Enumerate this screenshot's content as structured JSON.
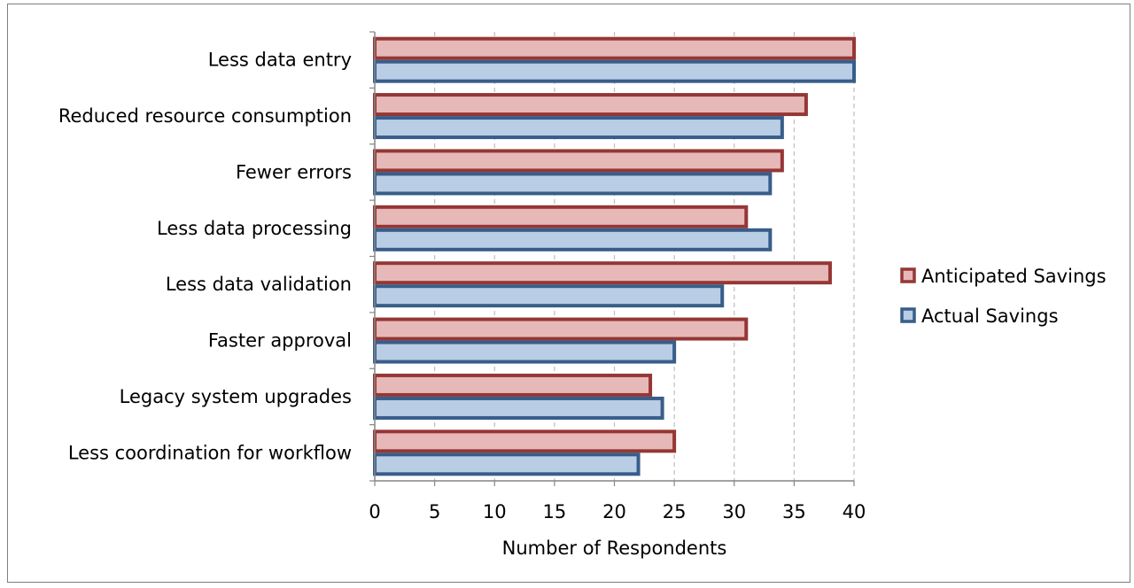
{
  "chart_data": {
    "type": "bar",
    "orientation": "horizontal",
    "categories": [
      "Less data entry",
      "Reduced resource consumption",
      "Fewer errors",
      "Less data processing",
      "Less data validation",
      "Faster approval",
      "Legacy system upgrades",
      "Less coordination for workflow"
    ],
    "series": [
      {
        "name": "Anticipated Savings",
        "values": [
          40,
          36,
          34,
          31,
          38,
          31,
          23,
          25
        ],
        "fill": "#e6b9b8",
        "stroke": "#953735"
      },
      {
        "name": "Actual Savings",
        "values": [
          40,
          34,
          33,
          33,
          29,
          25,
          24,
          22
        ],
        "fill": "#b9cde5",
        "stroke": "#385d8a"
      }
    ],
    "xlabel": "Number of Respondents",
    "ylabel": "",
    "xlim": [
      0,
      40
    ],
    "xticks": [
      0,
      5,
      10,
      15,
      20,
      25,
      30,
      35,
      40
    ],
    "grid": "vertical-dashed",
    "legend_position": "right"
  }
}
